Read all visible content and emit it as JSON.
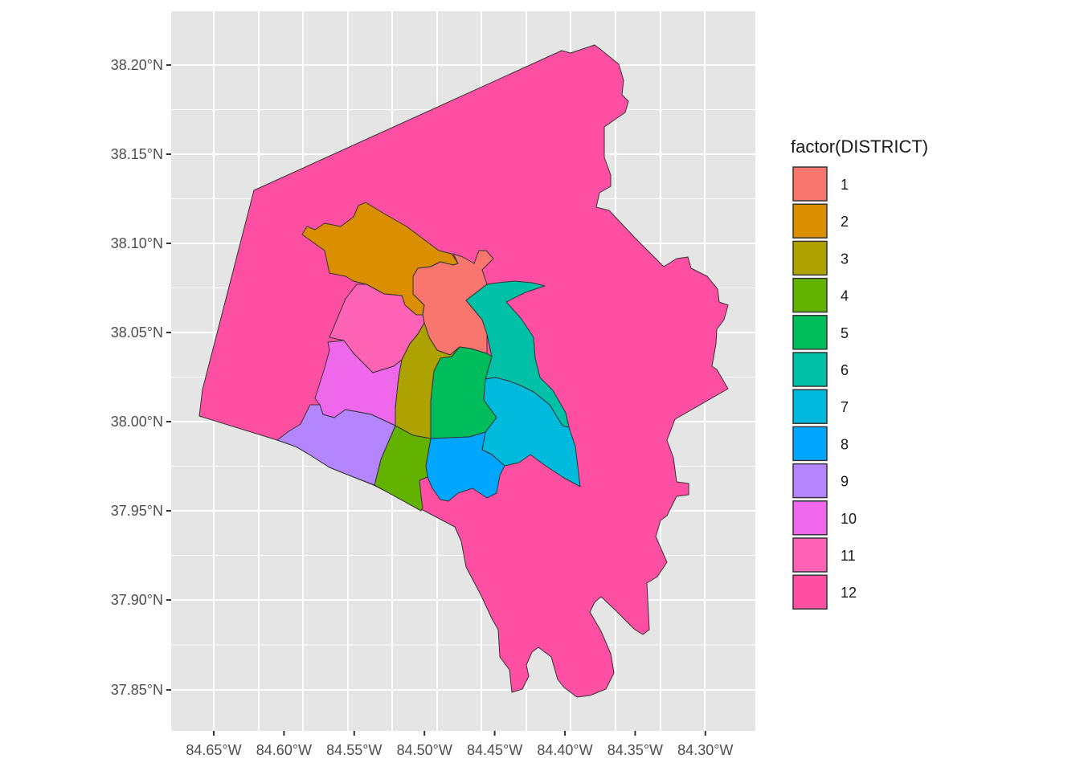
{
  "map": {
    "legend_title": "factor(DISTRICT)",
    "y_ticks": [
      "38.20°N",
      "38.15°N",
      "38.10°N",
      "38.05°N",
      "38.00°N",
      "37.95°N",
      "37.90°N",
      "37.85°N"
    ],
    "x_ticks": [
      "84.65°W",
      "84.60°W",
      "84.55°W",
      "84.50°W",
      "84.45°W",
      "84.40°W",
      "84.35°W",
      "84.30°W"
    ],
    "districts": [
      {
        "label": "1",
        "color": "#F8766D"
      },
      {
        "label": "2",
        "color": "#DB8E00"
      },
      {
        "label": "3",
        "color": "#AEA200"
      },
      {
        "label": "4",
        "color": "#64B200"
      },
      {
        "label": "5",
        "color": "#00BD5C"
      },
      {
        "label": "6",
        "color": "#00C1A7"
      },
      {
        "label": "7",
        "color": "#00BADE"
      },
      {
        "label": "8",
        "color": "#00A6FF"
      },
      {
        "label": "9",
        "color": "#B385FF"
      },
      {
        "label": "10",
        "color": "#EF67EB"
      },
      {
        "label": "11",
        "color": "#FF63B6"
      },
      {
        "label": "12",
        "color": "#FF4FA3"
      }
    ],
    "panel_color": "#EBEBEB",
    "grid_color": "#FFFFFF",
    "border_color": "#333333"
  }
}
